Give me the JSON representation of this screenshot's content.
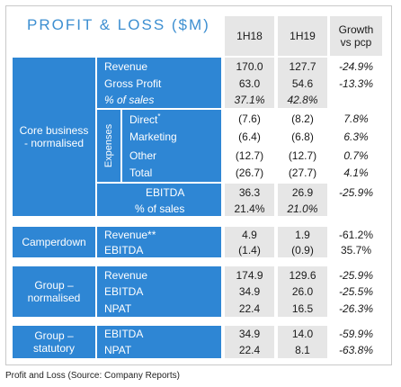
{
  "title": "PROFIT & LOSS ($M)",
  "columns": {
    "h1": "1H18",
    "h2": "1H19",
    "h3": "Growth vs pcp"
  },
  "sections": {
    "core": {
      "label": "Core business - normalised",
      "rows": {
        "revenue": {
          "label": "Revenue",
          "v1": "170.0",
          "v2": "127.7",
          "g": "-24.9%"
        },
        "gross_profit": {
          "label": "Gross Profit",
          "v1": "63.0",
          "v2": "54.6",
          "g": "-13.3%"
        },
        "pct_sales": {
          "label": "% of sales",
          "v1": "37.1%",
          "v2": "42.8%",
          "g": ""
        }
      },
      "expenses": {
        "label": "Expenses",
        "rows": {
          "direct": {
            "label": "Direct",
            "mark": "*",
            "v1": "(7.6)",
            "v2": "(8.2)",
            "g": "7.8%"
          },
          "marketing": {
            "label": "Marketing",
            "v1": "(6.4)",
            "v2": "(6.8)",
            "g": "6.3%"
          },
          "other": {
            "label": "Other",
            "v1": "(12.7)",
            "v2": "(12.7)",
            "g": "0.7%"
          },
          "total": {
            "label": "Total",
            "v1": "(26.7)",
            "v2": "(27.7)",
            "g": "4.1%"
          }
        }
      },
      "ebitda": {
        "label": "EBITDA",
        "v1": "36.3",
        "v2": "26.9",
        "g": "-25.9%"
      },
      "ebitda_pct": {
        "label": "% of sales",
        "v1": "21.4%",
        "v2": "21.0%",
        "g": ""
      }
    },
    "camperdown": {
      "label": "Camperdown",
      "rows": {
        "revenue": {
          "label": "Revenue**",
          "v1": "4.9",
          "v2": "1.9",
          "g": "-61.2%"
        },
        "ebitda": {
          "label": "EBITDA",
          "v1": "(1.4)",
          "v2": "(0.9)",
          "g": "35.7%"
        }
      }
    },
    "group_normalised": {
      "label": "Group – normalised",
      "rows": {
        "revenue": {
          "label": "Revenue",
          "v1": "174.9",
          "v2": "129.6",
          "g": "-25.9%"
        },
        "ebitda": {
          "label": "EBITDA",
          "v1": "34.9",
          "v2": "26.0",
          "g": "-25.5%"
        },
        "npat": {
          "label": "NPAT",
          "v1": "22.4",
          "v2": "16.5",
          "g": "-26.3%"
        }
      }
    },
    "group_statutory": {
      "label": "Group – statutory",
      "rows": {
        "ebitda": {
          "label": "EBITDA",
          "v1": "34.9",
          "v2": "14.0",
          "g": "-59.9%"
        },
        "npat": {
          "label": "NPAT",
          "v1": "22.4",
          "v2": "8.1",
          "g": "-63.8%"
        }
      }
    }
  },
  "caption": "Profit and Loss (Source: Company Reports)",
  "colors": {
    "accent": "#2e86d4",
    "title": "#3d8fd1",
    "shade": "#e6e6e6"
  }
}
